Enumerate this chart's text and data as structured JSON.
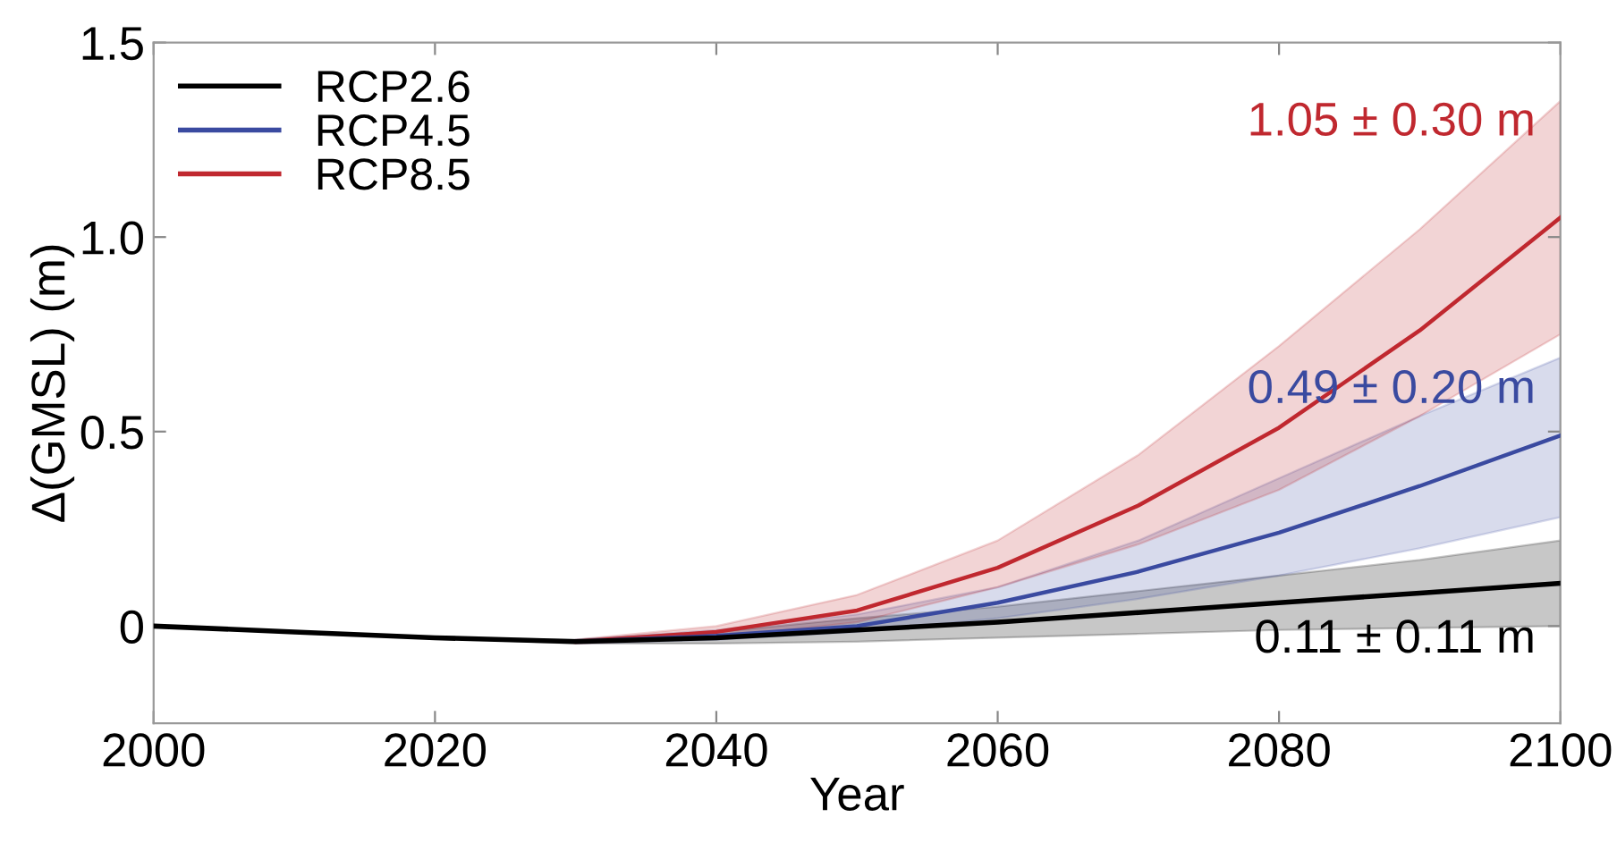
{
  "chart_data": {
    "type": "line",
    "xlabel": "Year",
    "ylabel": "Δ(GMSL) (m)",
    "x": [
      2000,
      2010,
      2020,
      2030,
      2040,
      2050,
      2060,
      2070,
      2080,
      2090,
      2100
    ],
    "series": [
      {
        "name": "RCP2.6",
        "color": "#000000",
        "values": [
          0,
          -0.015,
          -0.03,
          -0.04,
          -0.03,
          -0.01,
          0.01,
          0.035,
          0.06,
          0.085,
          0.11
        ],
        "lower": [
          0,
          -0.015,
          -0.03,
          -0.045,
          -0.045,
          -0.04,
          -0.03,
          -0.02,
          -0.01,
          -0.005,
          0.0
        ],
        "upper": [
          0,
          -0.015,
          -0.03,
          -0.035,
          -0.015,
          0.02,
          0.05,
          0.09,
          0.13,
          0.17,
          0.22
        ]
      },
      {
        "name": "RCP4.5",
        "color": "#3a4aa0",
        "values": [
          null,
          null,
          null,
          -0.04,
          -0.025,
          0.0,
          0.06,
          0.14,
          0.24,
          0.36,
          0.49
        ],
        "lower": [
          null,
          null,
          null,
          -0.045,
          -0.035,
          -0.015,
          0.02,
          0.07,
          0.13,
          0.2,
          0.28
        ],
        "upper": [
          null,
          null,
          null,
          -0.035,
          -0.01,
          0.03,
          0.1,
          0.22,
          0.38,
          0.54,
          0.69
        ]
      },
      {
        "name": "RCP8.5",
        "color": "#c0282f",
        "values": [
          null,
          null,
          null,
          -0.04,
          -0.015,
          0.04,
          0.15,
          0.31,
          0.51,
          0.76,
          1.05
        ],
        "lower": [
          null,
          null,
          null,
          -0.045,
          -0.03,
          0.01,
          0.1,
          0.21,
          0.35,
          0.54,
          0.75
        ],
        "upper": [
          null,
          null,
          null,
          -0.035,
          0.0,
          0.08,
          0.22,
          0.44,
          0.72,
          1.02,
          1.35
        ]
      }
    ],
    "annotations": [
      "0.11 ± 0.11 m",
      "0.49 ± 0.20 m",
      "1.05 ± 0.30 m"
    ],
    "xlim": [
      2000,
      2100
    ],
    "xticks": [
      2000,
      2020,
      2040,
      2060,
      2080,
      2100
    ],
    "ylim": [
      -0.25,
      1.5
    ],
    "yticks": [
      0,
      0.5,
      {
        "value": 1.0,
        "label": "1.0"
      },
      1.5
    ],
    "legend": "top left",
    "grid": false
  }
}
